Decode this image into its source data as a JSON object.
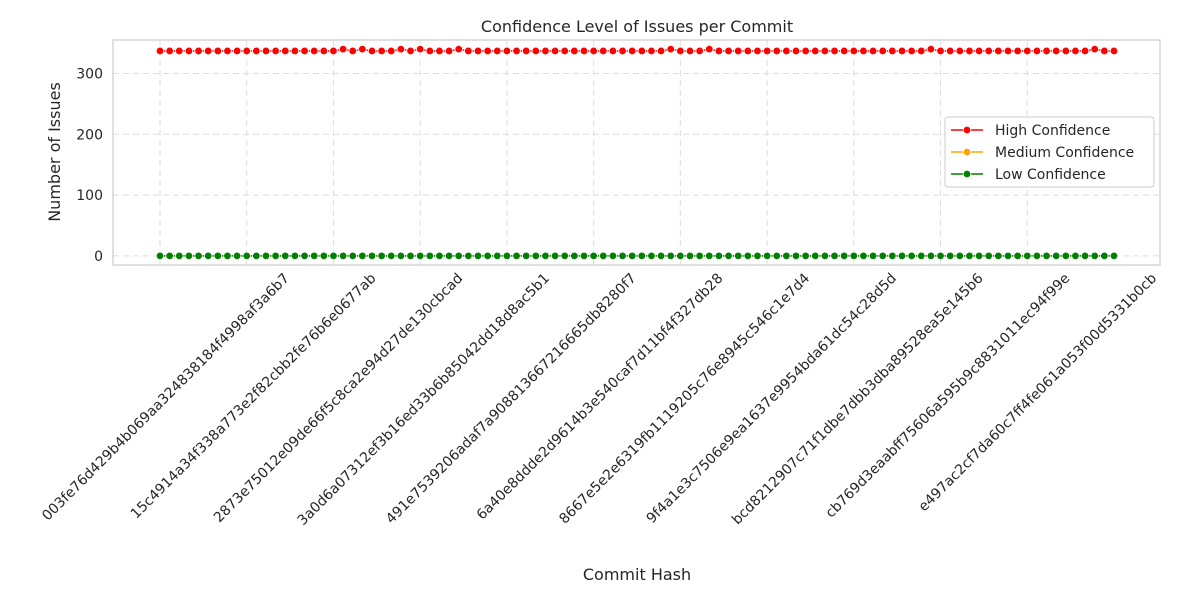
{
  "chart_data": {
    "type": "line",
    "title": "Confidence Level of Issues per Commit",
    "xlabel": "Commit Hash",
    "ylabel": "Number of Issues",
    "ylim": [
      -15,
      355
    ],
    "y_ticks": [
      0,
      100,
      200,
      300
    ],
    "grid": true,
    "legend_position": "center-right",
    "x_tick_labels": [
      "003fe76d429b4b069aa324838184f4998af3a6b7",
      "15c4914a34f338a773e2f82cbb2fe76b6e0677ab",
      "2873e75012e09de66f5c8ca2e94d27de130cbcad",
      "3a0d6a07312ef3b16ed33b6b85042dd18d8ac5b1",
      "491e7539206adaf7a908813667216665db8280f7",
      "6a40e8ddde2d9614b3e540caf7d11bf4f327db28",
      "8667e5e2e6319fb1119205c76e8945c546c1e7d4",
      "9f4a1e3c7506e9ea1637e9954bda61dc54c28d5d",
      "bcd8212907c71f1dbe7dbb3dba89528ea5e145b6",
      "cb769d3eaabff75606a595b9c8831011ec94f99e",
      "e497ac2cf7da60c7ff4fe061a053f00d5331b0cb"
    ],
    "x_tick_indices": [
      0,
      9,
      18,
      27,
      36,
      45,
      54,
      63,
      72,
      81,
      90
    ],
    "x": [
      0,
      1,
      2,
      3,
      4,
      5,
      6,
      7,
      8,
      9,
      10,
      11,
      12,
      13,
      14,
      15,
      16,
      17,
      18,
      19,
      20,
      21,
      22,
      23,
      24,
      25,
      26,
      27,
      28,
      29,
      30,
      31,
      32,
      33,
      34,
      35,
      36,
      37,
      38,
      39,
      40,
      41,
      42,
      43,
      44,
      45,
      46,
      47,
      48,
      49,
      50,
      51,
      52,
      53,
      54,
      55,
      56,
      57,
      58,
      59,
      60,
      61,
      62,
      63,
      64,
      65,
      66,
      67,
      68,
      69,
      70,
      71,
      72,
      73,
      74,
      75,
      76,
      77,
      78,
      79,
      80,
      81,
      82,
      83,
      84,
      85,
      86,
      87,
      88,
      89,
      90,
      91,
      92,
      93,
      94,
      95,
      96,
      97,
      98,
      99
    ],
    "series": [
      {
        "name": "High Confidence",
        "color": "#ff0000",
        "values": [
          337,
          337,
          337,
          337,
          337,
          337,
          337,
          337,
          337,
          337,
          337,
          337,
          337,
          337,
          337,
          337,
          337,
          337,
          337,
          340,
          337,
          340,
          337,
          337,
          337,
          340,
          337,
          340,
          337,
          337,
          337,
          340,
          337,
          337,
          337,
          337,
          337,
          337,
          337,
          337,
          337,
          337,
          337,
          337,
          337,
          337,
          337,
          337,
          337,
          337,
          337,
          337,
          337,
          340,
          337,
          337,
          337,
          340,
          337,
          337,
          337,
          337,
          337,
          337,
          337,
          337,
          337,
          337,
          337,
          337,
          337,
          337,
          337,
          337,
          337,
          337,
          337,
          337,
          337,
          337,
          340,
          337,
          337,
          337,
          337,
          337,
          337,
          337,
          337,
          337,
          337,
          337,
          337,
          337,
          337,
          337,
          337,
          340,
          337,
          337
        ]
      },
      {
        "name": "Medium Confidence",
        "color": "#ffa500",
        "values": [
          0,
          0,
          0,
          0,
          0,
          0,
          0,
          0,
          0,
          0,
          0,
          0,
          0,
          0,
          0,
          0,
          0,
          0,
          0,
          0,
          0,
          0,
          0,
          0,
          0,
          0,
          0,
          0,
          0,
          0,
          0,
          0,
          0,
          0,
          0,
          0,
          0,
          0,
          0,
          0,
          0,
          0,
          0,
          0,
          0,
          0,
          0,
          0,
          0,
          0,
          0,
          0,
          0,
          0,
          0,
          0,
          0,
          0,
          0,
          0,
          0,
          0,
          0,
          0,
          0,
          0,
          0,
          0,
          0,
          0,
          0,
          0,
          0,
          0,
          0,
          0,
          0,
          0,
          0,
          0,
          0,
          0,
          0,
          0,
          0,
          0,
          0,
          0,
          0,
          0,
          0,
          0,
          0,
          0,
          0,
          0,
          0,
          0,
          0,
          0
        ]
      },
      {
        "name": "Low Confidence",
        "color": "#008000",
        "values": [
          0,
          0,
          0,
          0,
          0,
          0,
          0,
          0,
          0,
          0,
          0,
          0,
          0,
          0,
          0,
          0,
          0,
          0,
          0,
          0,
          0,
          0,
          0,
          0,
          0,
          0,
          0,
          0,
          0,
          0,
          0,
          0,
          0,
          0,
          0,
          0,
          0,
          0,
          0,
          0,
          0,
          0,
          0,
          0,
          0,
          0,
          0,
          0,
          0,
          0,
          0,
          0,
          0,
          0,
          0,
          0,
          0,
          0,
          0,
          0,
          0,
          0,
          0,
          0,
          0,
          0,
          0,
          0,
          0,
          0,
          0,
          0,
          0,
          0,
          0,
          0,
          0,
          0,
          0,
          0,
          0,
          0,
          0,
          0,
          0,
          0,
          0,
          0,
          0,
          0,
          0,
          0,
          0,
          0,
          0,
          0,
          0,
          0,
          0,
          0
        ]
      }
    ]
  }
}
